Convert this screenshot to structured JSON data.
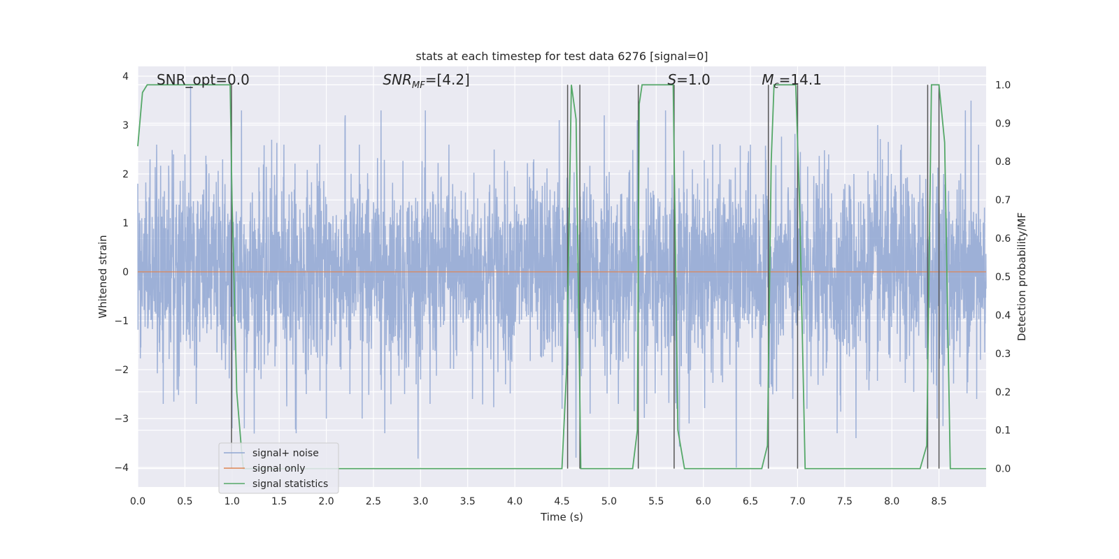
{
  "chart_data": {
    "type": "line",
    "title": "stats at each timestep for test data 6276 [signal=0]",
    "xlabel": "Time (s)",
    "ylabel": "Whitened strain",
    "y2label": "Detection probability/MF",
    "xlim": [
      0.0,
      9.0
    ],
    "ylim": [
      -4.4,
      4.2
    ],
    "y2lim": [
      -0.048,
      1.048
    ],
    "xticks": [
      0.0,
      0.5,
      1.0,
      1.5,
      2.0,
      2.5,
      3.0,
      3.5,
      4.0,
      4.5,
      5.0,
      5.5,
      6.0,
      6.5,
      7.0,
      7.5,
      8.0,
      8.5
    ],
    "xtick_labels": [
      "0.0",
      "0.5",
      "1.0",
      "1.5",
      "2.0",
      "2.5",
      "3.0",
      "3.5",
      "4.0",
      "4.5",
      "5.0",
      "5.5",
      "6.0",
      "6.5",
      "7.0",
      "7.5",
      "8.0",
      "8.5"
    ],
    "yticks": [
      4,
      3,
      2,
      1,
      0,
      -1,
      -2,
      -3,
      -4
    ],
    "ytick_labels": [
      "4",
      "3",
      "2",
      "1",
      "0",
      "−1",
      "−2",
      "−3",
      "−4"
    ],
    "y2ticks": [
      1.0,
      0.9,
      0.8,
      0.7,
      0.6,
      0.5,
      0.4,
      0.3,
      0.2,
      0.1,
      0.0
    ],
    "y2tick_labels": [
      "1.0",
      "0.9",
      "0.8",
      "0.7",
      "0.6",
      "0.5",
      "0.4",
      "0.3",
      "0.2",
      "0.1",
      "0.0"
    ],
    "grid": true,
    "legend_position": "lower-left",
    "annotations": [
      {
        "text": "SNR_opt=0.0",
        "x": 0.2
      },
      {
        "text": "SNR_MF=[4.2]",
        "x": 2.6
      },
      {
        "text": "S=1.0",
        "x": 5.62
      },
      {
        "text": "M_c=14.1",
        "x": 6.62
      }
    ],
    "series": [
      {
        "name": "signal+ noise",
        "color": "#8fa6d2",
        "style": "dense noise trace",
        "envelope": {
          "typical_abs": 1.6,
          "peak_max": 3.85,
          "peak_min": -3.85
        },
        "peaks": [
          [
            0.13,
            2.3
          ],
          [
            0.2,
            2.6
          ],
          [
            0.27,
            -2.7
          ],
          [
            0.38,
            2.4
          ],
          [
            0.5,
            2.4
          ],
          [
            0.56,
            3.8
          ],
          [
            0.62,
            -2.7
          ],
          [
            0.73,
            2.2
          ],
          [
            0.9,
            2.3
          ],
          [
            0.93,
            -2.0
          ],
          [
            0.99,
            3.0
          ],
          [
            1.0,
            -3.2
          ],
          [
            1.1,
            3.3
          ],
          [
            1.13,
            -3.2
          ],
          [
            1.42,
            2.7
          ],
          [
            1.55,
            2.6
          ],
          [
            1.68,
            -3.3
          ],
          [
            1.93,
            2.6
          ],
          [
            2.0,
            -3.0
          ],
          [
            2.2,
            3.2
          ],
          [
            2.25,
            -2.5
          ],
          [
            2.35,
            2.6
          ],
          [
            2.38,
            -3.0
          ],
          [
            2.58,
            3.3
          ],
          [
            2.62,
            -3.3
          ],
          [
            2.83,
            -2.5
          ],
          [
            3.05,
            3.3
          ],
          [
            3.1,
            -2.7
          ],
          [
            3.3,
            2.6
          ],
          [
            3.55,
            -2.6
          ],
          [
            3.78,
            2.5
          ],
          [
            3.9,
            -2.3
          ],
          [
            4.2,
            2.3
          ],
          [
            4.47,
            3.1
          ],
          [
            4.5,
            -2.8
          ],
          [
            4.65,
            -3.8
          ],
          [
            4.8,
            -2.9
          ],
          [
            4.95,
            3.2
          ],
          [
            5.1,
            -2.7
          ],
          [
            5.3,
            3.1
          ],
          [
            5.4,
            -2.7
          ],
          [
            5.6,
            3.3
          ],
          [
            5.72,
            -2.8
          ],
          [
            5.85,
            -3.1
          ],
          [
            6.1,
            2.6
          ],
          [
            6.35,
            -4.0
          ],
          [
            6.5,
            2.6
          ],
          [
            6.6,
            -2.3
          ],
          [
            6.72,
            -2.3
          ],
          [
            6.95,
            -2.6
          ],
          [
            7.1,
            -2.8
          ],
          [
            7.33,
            2.4
          ],
          [
            7.42,
            -3.3
          ],
          [
            7.62,
            -3.4
          ],
          [
            7.85,
            3.0
          ],
          [
            7.9,
            2.3
          ],
          [
            8.1,
            2.6
          ],
          [
            8.36,
            1.9
          ],
          [
            8.48,
            -3.0
          ],
          [
            8.55,
            2.0
          ],
          [
            8.78,
            3.3
          ],
          [
            8.84,
            3.5
          ],
          [
            8.92,
            2.6
          ],
          [
            8.9,
            -2.6
          ]
        ]
      },
      {
        "name": "signal only",
        "color": "#dd8452",
        "x": [
          0.0,
          9.0
        ],
        "y": [
          0.0,
          0.0
        ]
      },
      {
        "name": "signal statistics",
        "color": "#55a868",
        "axis": "right",
        "x": [
          0.0,
          0.05,
          0.1,
          0.98,
          1.0,
          1.05,
          1.1,
          1.12,
          4.5,
          4.55,
          4.6,
          4.65,
          4.7,
          5.25,
          5.3,
          5.32,
          5.35,
          5.68,
          5.73,
          5.8,
          6.62,
          6.68,
          6.72,
          6.75,
          6.98,
          7.02,
          7.08,
          8.3,
          8.37,
          8.42,
          8.5,
          8.56,
          8.62,
          9.0
        ],
        "y": [
          0.84,
          0.98,
          1.0,
          1.0,
          0.7,
          0.2,
          0.05,
          0.0,
          0.0,
          0.26,
          1.0,
          0.91,
          0.0,
          0.0,
          0.1,
          0.95,
          1.0,
          1.0,
          0.1,
          0.0,
          0.0,
          0.06,
          0.8,
          1.0,
          1.0,
          0.7,
          0.0,
          0.0,
          0.06,
          1.0,
          1.0,
          0.85,
          0.0,
          0.0
        ]
      }
    ],
    "vertical_lines": {
      "color": "#555555",
      "x": [
        0.995,
        4.56,
        4.69,
        5.31,
        5.69,
        6.69,
        7.0,
        8.38,
        8.5
      ]
    }
  }
}
